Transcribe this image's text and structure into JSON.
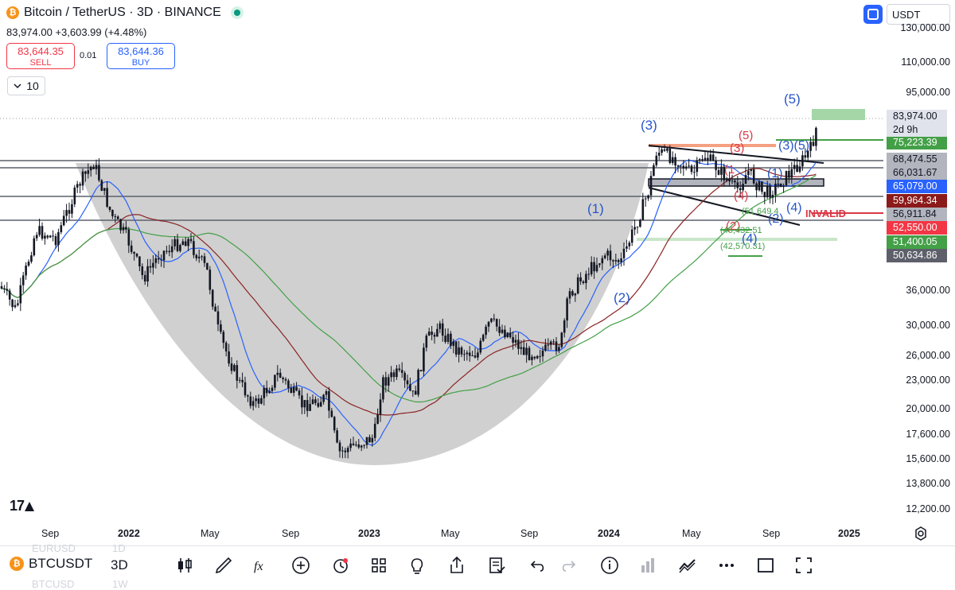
{
  "header": {
    "symbol_title": "Bitcoin / TetherUS · 3D · BINANCE",
    "symbol_icon": "bitcoin-icon",
    "change_text": "83,974.00 +3,603.99 (+4.48%)"
  },
  "trade": {
    "sell_price": "83,644.35",
    "sell_label": "SELL",
    "spread": "0.01",
    "buy_price": "83,644.36",
    "buy_label": "BUY",
    "lots": "10"
  },
  "currency": "USDT",
  "y_axis": {
    "ticks": [
      "130,000.00",
      "110,000.00",
      "95,000.00",
      "36,000.00",
      "30,000.00",
      "26,000.00",
      "23,000.00",
      "20,000.00",
      "17,600.00",
      "15,600.00",
      "13,800.00",
      "12,200.00"
    ],
    "current_price": "83,974.00",
    "countdown": "2d 9h",
    "tags": [
      {
        "value": "75,223.39",
        "bg": "#43a047",
        "fg": "#ffffff"
      },
      {
        "value": "68,474.55",
        "bg": "#b2b5be",
        "fg": "#131722"
      },
      {
        "value": "66,031.67",
        "bg": "#b2b5be",
        "fg": "#131722"
      },
      {
        "value": "65,079.00",
        "bg": "#2962ff",
        "fg": "#ffffff"
      },
      {
        "value": "59,964.34",
        "bg": "#8b1a1a",
        "fg": "#ffffff"
      },
      {
        "value": "56,911.84",
        "bg": "#b2b5be",
        "fg": "#131722"
      },
      {
        "value": "52,550.00",
        "bg": "#f23645",
        "fg": "#ffffff"
      },
      {
        "value": "51,400.05",
        "bg": "#43a047",
        "fg": "#ffffff"
      },
      {
        "value": "50,634.86",
        "bg": "#5d606b",
        "fg": "#ffffff"
      }
    ]
  },
  "x_axis": {
    "labels": [
      {
        "text": "Sep",
        "bold": false
      },
      {
        "text": "2022",
        "bold": true
      },
      {
        "text": "May",
        "bold": false
      },
      {
        "text": "Sep",
        "bold": false
      },
      {
        "text": "2023",
        "bold": true
      },
      {
        "text": "May",
        "bold": false
      },
      {
        "text": "Sep",
        "bold": false
      },
      {
        "text": "2024",
        "bold": true
      },
      {
        "text": "May",
        "bold": false
      },
      {
        "text": "Sep",
        "bold": false
      },
      {
        "text": "2025",
        "bold": true
      }
    ]
  },
  "annotations": {
    "w1": "(1)",
    "w2": "(2)",
    "w3": "(3)",
    "w5": "(5)",
    "red5": "(5)",
    "red3": "(3)",
    "red1": "(1",
    "red4": "(4)",
    "red2": "(2)",
    "blue35": "(3)(5)",
    "blue1": "(1)",
    "blue4": "(4)",
    "blue2": "(2)",
    "blue4b": "(4)",
    "invalid": "INVALID",
    "g1": "(51,649.4",
    "g2": "(46,432.51",
    "g3": "(42,570.31)"
  },
  "branding": {
    "logo": "17"
  },
  "bottom": {
    "symbol": "BTCUSDT",
    "interval": "3D",
    "ghost_symbol_top": "EURUSD",
    "ghost_interval_top": "1D",
    "ghost_symbol_bottom": "BTCUSD",
    "ghost_interval_bottom": "1W",
    "tools": [
      "candles-icon",
      "brush-icon",
      "fx-icon",
      "plus-circle-icon",
      "alarm-icon",
      "grid-icon",
      "lightbulb-icon",
      "share-icon",
      "checklist-icon",
      "undo-icon",
      "redo-icon",
      "info-icon",
      "bar-chart-icon",
      "trend-icon",
      "more-icon",
      "square-icon",
      "fullscreen-icon"
    ]
  },
  "colors": {
    "up": "#089981",
    "down": "#f23645",
    "cup": "#c8c8c8",
    "ma_blue": "#2962ff",
    "ma_red": "#8b2323",
    "ma_green": "#43a047"
  }
}
